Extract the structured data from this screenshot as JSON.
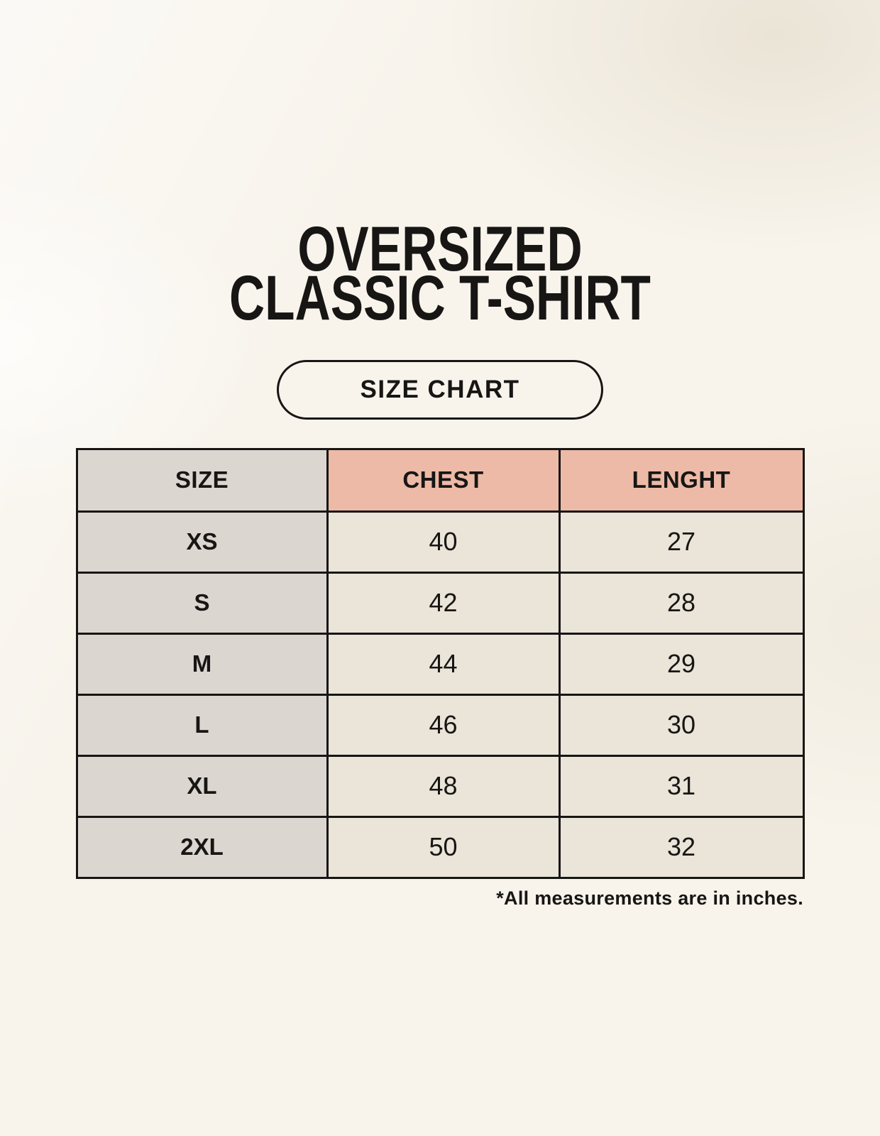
{
  "header": {
    "title_line1": "OVERSIZED",
    "title_line2": "CLASSIC T-SHIRT",
    "badge_label": "SIZE CHART"
  },
  "footer": {
    "note": "*All measurements are in inches."
  },
  "colors": {
    "page_background": "#f8f4ec",
    "label_cell_background": "#dcd6d0",
    "accent_header_background": "#edbaa7",
    "value_cell_background": "#eae4d9",
    "border_and_text": "#171614"
  },
  "chart_data": {
    "type": "table",
    "title": "OVERSIZED CLASSIC T-SHIRT — SIZE CHART",
    "columns": [
      "SIZE",
      "CHEST",
      "LENGHT"
    ],
    "rows": [
      {
        "size": "XS",
        "chest": 40,
        "lenght": 27
      },
      {
        "size": "S",
        "chest": 42,
        "lenght": 28
      },
      {
        "size": "M",
        "chest": 44,
        "lenght": 29
      },
      {
        "size": "L",
        "chest": 46,
        "lenght": 30
      },
      {
        "size": "XL",
        "chest": 48,
        "lenght": 31
      },
      {
        "size": "2XL",
        "chest": 50,
        "lenght": 32
      }
    ],
    "units": "inches",
    "layout": "first column gray labels, measurement headers salmon, value cells beige, black 3px grid"
  }
}
